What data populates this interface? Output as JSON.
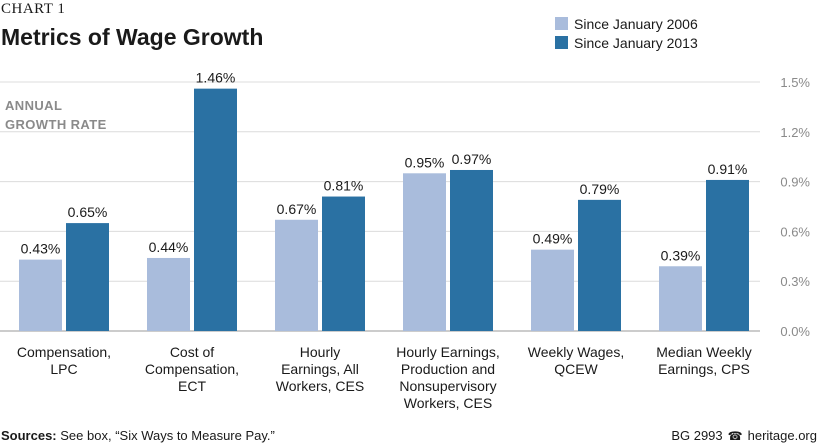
{
  "header": {
    "chart_label": "CHART 1",
    "title": "Metrics of Wage Growth"
  },
  "footer": {
    "sources_label": "Sources:",
    "sources_text": "See box, “Six Ways to Measure Pay.”",
    "code": "BG 2993",
    "site": "heritage.org",
    "icon": "liberty-bell-icon"
  },
  "colors": {
    "series_2006": "#a9bcdc",
    "series_2013": "#2a71a3",
    "grid": "#dcdcdc",
    "axis_text": "#8a8a8a"
  },
  "chart_data": {
    "type": "bar",
    "title": "Metrics of Wage Growth",
    "ylabel_lines": [
      "ANNUAL",
      "GROWTH RATE"
    ],
    "ylim": [
      0,
      1.5
    ],
    "yticks": [
      "0.0%",
      "0.3%",
      "0.6%",
      "0.9%",
      "1.2%",
      "1.5%"
    ],
    "ytick_values": [
      0,
      0.3,
      0.6,
      0.9,
      1.2,
      1.5
    ],
    "y_axis_side": "right",
    "grid": true,
    "legend_position": "top-right",
    "categories": [
      [
        "Compensation,",
        "LPC"
      ],
      [
        "Cost of",
        "Compensation,",
        "ECT"
      ],
      [
        "Hourly",
        "Earnings, All",
        "Workers, CES"
      ],
      [
        "Hourly Earnings,",
        "Production and",
        "Nonsupervisory",
        "Workers, CES"
      ],
      [
        "Weekly Wages,",
        "QCEW"
      ],
      [
        "Median Weekly",
        "Earnings, CPS"
      ]
    ],
    "series": [
      {
        "name": "Since January 2006",
        "values": [
          0.43,
          0.44,
          0.67,
          0.95,
          0.49,
          0.39
        ],
        "labels": [
          "0.43%",
          "0.44%",
          "0.67%",
          "0.95%",
          "0.49%",
          "0.39%"
        ]
      },
      {
        "name": "Since January 2013",
        "values": [
          0.65,
          1.46,
          0.81,
          0.97,
          0.79,
          0.91
        ],
        "labels": [
          "0.65%",
          "1.46%",
          "0.81%",
          "0.97%",
          "0.79%",
          "0.91%"
        ]
      }
    ]
  }
}
